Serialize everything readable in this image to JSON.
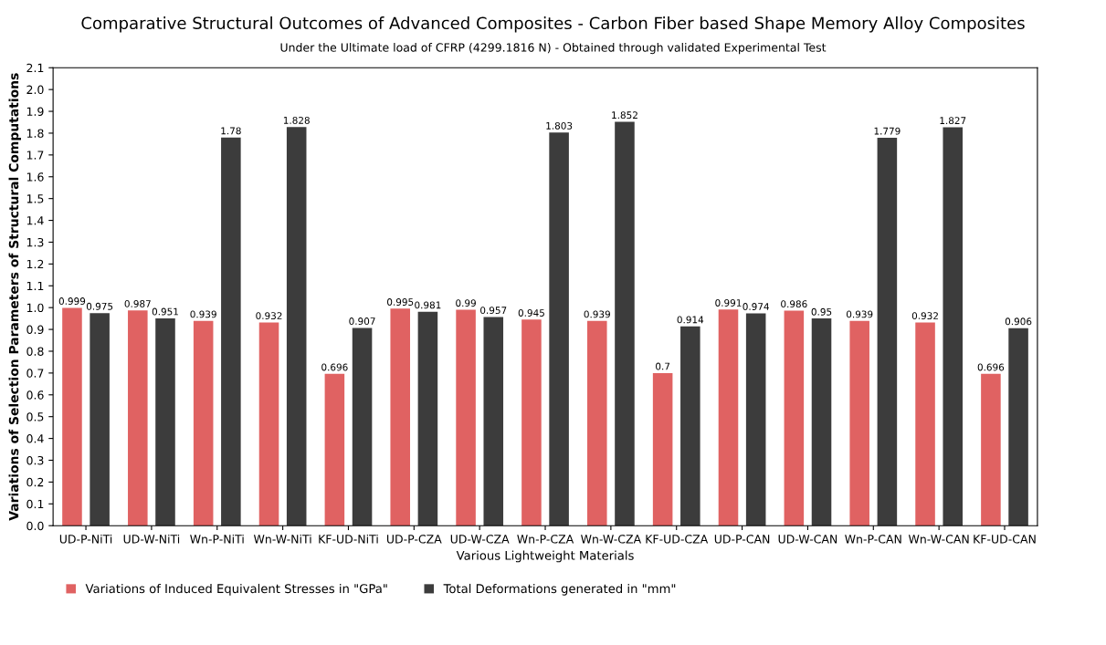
{
  "chart_data": {
    "type": "bar",
    "title": "Comparative Structural Outcomes of Advanced Composites - Carbon Fiber based Shape Memory Alloy Composites",
    "subtitle": "Under the Ultimate load of CFRP (4299.1816 N) - Obtained through validated Experimental Test",
    "xlabel": "Various Lightweight Materials",
    "ylabel": "Variations of Selection Parameters of Structural Computations",
    "categories": [
      "UD-P-NiTi",
      "UD-W-NiTi",
      "Wn-P-NiTi",
      "Wn-W-NiTi",
      "KF-UD-NiTi",
      "UD-P-CZA",
      "UD-W-CZA",
      "Wn-P-CZA",
      "Wn-W-CZA",
      "KF-UD-CZA",
      "UD-P-CAN",
      "UD-W-CAN",
      "Wn-P-CAN",
      "Wn-W-CAN",
      "KF-UD-CAN"
    ],
    "series": [
      {
        "name": "Variations of Induced Equivalent Stresses in \"GPa\"",
        "color": "#e06262",
        "values": [
          0.999,
          0.987,
          0.939,
          0.932,
          0.696,
          0.995,
          0.99,
          0.945,
          0.939,
          0.7,
          0.991,
          0.986,
          0.939,
          0.932,
          0.696
        ]
      },
      {
        "name": "Total Deformations generated in \"mm\"",
        "color": "#3c3c3c",
        "values": [
          0.975,
          0.951,
          1.78,
          1.828,
          0.907,
          0.981,
          0.957,
          1.803,
          1.852,
          0.914,
          0.974,
          0.95,
          1.779,
          1.827,
          0.906
        ]
      }
    ],
    "ylim": [
      0,
      2.1
    ],
    "yticks": [
      {
        "value": 0,
        "label": "0.0"
      },
      0.1,
      0.2,
      0.3,
      0.4,
      0.5,
      0.6,
      0.7,
      0.8,
      0.9,
      {
        "value": 1,
        "label": "1.0"
      },
      1.1,
      1.2,
      1.3,
      1.4,
      1.5,
      1.6,
      1.7,
      1.8,
      1.9,
      {
        "value": 2,
        "label": "2.0"
      },
      2.1
    ],
    "data_labels": true,
    "grid": false,
    "legend": "bottom left"
  }
}
